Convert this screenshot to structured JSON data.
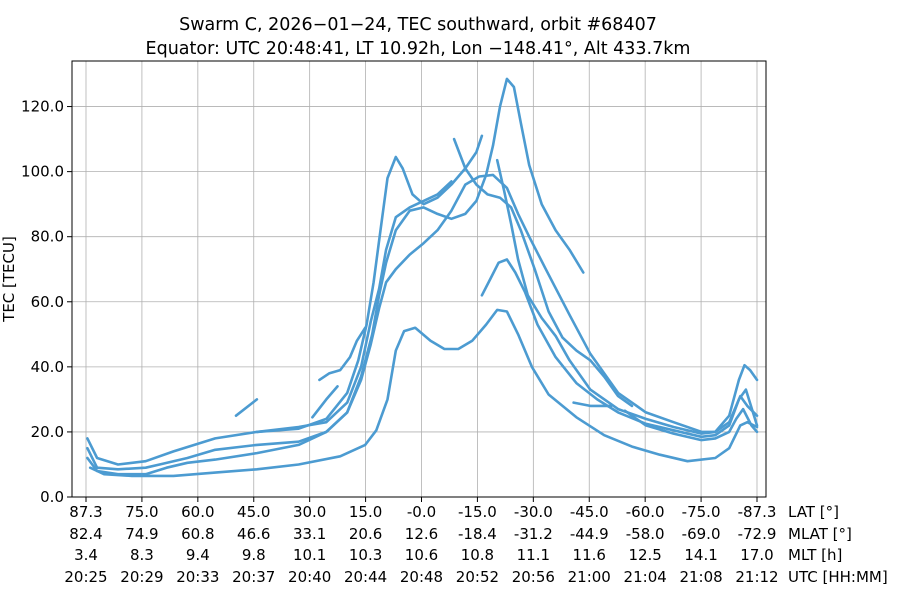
{
  "chart_data": {
    "type": "scatter",
    "title_line1": "Swarm C,  2026−01−24,  TEC southward,  orbit #68407",
    "title_line2": "Equator:  UTC 20:48:41,  LT 10.92h,  Lon  −148.41°,  Alt 433.7km",
    "ylabel": "TEC [TECU]",
    "ylim": [
      0,
      134
    ],
    "y_ticks": [
      "0.0",
      "20.0",
      "40.0",
      "60.0",
      "80.0",
      "100.0",
      "120.0"
    ],
    "grid": true,
    "color": "#4c9bd1",
    "x_unit": "minutes",
    "x_range": [
      20424.7,
      20473.0
    ],
    "x_axes": [
      {
        "name": "LAT [°]",
        "ticks": [
          "87.3",
          "75.0",
          "60.0",
          "45.0",
          "30.0",
          "15.0",
          "-0.0",
          "-15.0",
          "-30.0",
          "-45.0",
          "-60.0",
          "-75.0",
          "-87.3"
        ]
      },
      {
        "name": "MLAT [°]",
        "ticks": [
          "82.4",
          "74.9",
          "60.8",
          "46.6",
          "33.1",
          "20.6",
          "12.6",
          "-18.4",
          "-31.2",
          "-44.9",
          "-58.0",
          "-69.0",
          "-72.9"
        ]
      },
      {
        "name": "MLT [h]",
        "ticks": [
          "3.4",
          "8.3",
          "9.4",
          "9.8",
          "10.1",
          "10.3",
          "10.6",
          "10.8",
          "11.1",
          "11.6",
          "12.5",
          "14.1",
          "17.0"
        ]
      },
      {
        "name": "UTC [HH:MM]",
        "ticks": [
          "20:25",
          "20:29",
          "20:33",
          "20:37",
          "20:40",
          "20:44",
          "20:48",
          "20:52",
          "20:56",
          "21:00",
          "21:04",
          "21:08",
          "21:12"
        ]
      }
    ],
    "series": [
      {
        "points": [
          [
            20425,
            9
          ],
          [
            20426,
            7
          ],
          [
            20428,
            6.5
          ],
          [
            20431,
            6.5
          ],
          [
            20434,
            7.5
          ],
          [
            20437,
            8.5
          ],
          [
            20440,
            10
          ],
          [
            20443,
            12.5
          ],
          [
            20444.8,
            16
          ],
          [
            20445.6,
            20.5
          ],
          [
            20446.4,
            30
          ],
          [
            20447.0,
            45
          ],
          [
            20447.6,
            51
          ],
          [
            20448.4,
            52
          ],
          [
            20449.5,
            48
          ],
          [
            20450.5,
            45.5
          ],
          [
            20451.5,
            45.5
          ],
          [
            20452.5,
            48
          ],
          [
            20453.5,
            53
          ],
          [
            20454.3,
            57.5
          ],
          [
            20455.0,
            57
          ],
          [
            20455.8,
            50
          ],
          [
            20456.8,
            40
          ],
          [
            20458,
            31.5
          ],
          [
            20460,
            24.5
          ],
          [
            20462,
            19
          ],
          [
            20464,
            15.5
          ],
          [
            20466,
            13
          ],
          [
            20468,
            11
          ],
          [
            20470,
            12
          ],
          [
            20471,
            15
          ],
          [
            20471.8,
            22
          ],
          [
            20472.3,
            23
          ],
          [
            20473,
            21.5
          ]
        ]
      },
      {
        "points": [
          [
            20424.8,
            12
          ],
          [
            20425.5,
            8
          ],
          [
            20427,
            7
          ],
          [
            20429,
            7
          ],
          [
            20430.5,
            9
          ],
          [
            20432,
            10.5
          ],
          [
            20434,
            11.5
          ],
          [
            20437,
            13.5
          ],
          [
            20440,
            16
          ],
          [
            20442,
            20
          ],
          [
            20443.5,
            26
          ],
          [
            20444.5,
            36
          ],
          [
            20445.2,
            47
          ],
          [
            20445.8,
            58
          ],
          [
            20446.3,
            66
          ],
          [
            20447,
            70
          ],
          [
            20448,
            74.5
          ],
          [
            20449,
            78
          ],
          [
            20450,
            82
          ],
          [
            20451,
            88
          ],
          [
            20452,
            96
          ],
          [
            20453,
            98.5
          ],
          [
            20454,
            99
          ],
          [
            20455,
            95
          ],
          [
            20455.8,
            87
          ],
          [
            20456.6,
            80
          ],
          [
            20457.8,
            70
          ],
          [
            20459.5,
            56
          ],
          [
            20461,
            44
          ],
          [
            20463,
            32
          ],
          [
            20465,
            26
          ],
          [
            20467,
            23
          ],
          [
            20469,
            20
          ],
          [
            20470,
            20
          ],
          [
            20471,
            23
          ],
          [
            20471.8,
            31
          ],
          [
            20472.3,
            28
          ],
          [
            20473,
            25
          ]
        ]
      },
      {
        "points": [
          [
            20424.8,
            15
          ],
          [
            20425.5,
            9
          ],
          [
            20427,
            8.5
          ],
          [
            20429,
            9
          ],
          [
            20430,
            10
          ],
          [
            20432,
            12
          ],
          [
            20434,
            14.5
          ],
          [
            20437,
            16
          ],
          [
            20440,
            17
          ],
          [
            20442,
            20
          ],
          [
            20443.5,
            26
          ],
          [
            20444.5,
            37
          ],
          [
            20445.3,
            50
          ],
          [
            20445.8,
            62
          ],
          [
            20446.3,
            72
          ],
          [
            20447,
            82
          ],
          [
            20448,
            88
          ],
          [
            20449,
            89
          ],
          [
            20450,
            87
          ],
          [
            20451,
            85.5
          ],
          [
            20452,
            87
          ],
          [
            20452.8,
            91
          ],
          [
            20453.5,
            99
          ],
          [
            20454.0,
            108
          ],
          [
            20454.5,
            120
          ],
          [
            20455.0,
            128.5
          ],
          [
            20455.5,
            126
          ],
          [
            20456,
            115
          ],
          [
            20456.6,
            102
          ],
          [
            20457.5,
            90
          ],
          [
            20458.5,
            82
          ],
          [
            20459.5,
            76
          ],
          [
            20460.5,
            69
          ]
        ]
      },
      {
        "points": [
          [
            20424.8,
            18
          ],
          [
            20425.5,
            12
          ],
          [
            20427,
            10
          ],
          [
            20429,
            11
          ],
          [
            20431,
            14
          ],
          [
            20434,
            18
          ],
          [
            20437,
            20
          ],
          [
            20440,
            21.5
          ],
          [
            20442,
            23
          ],
          [
            20443.5,
            29
          ],
          [
            20444.5,
            40
          ],
          [
            20445.2,
            54
          ],
          [
            20445.8,
            64
          ],
          [
            20446.3,
            76
          ],
          [
            20447,
            86
          ],
          [
            20448,
            89
          ],
          [
            20449,
            91
          ],
          [
            20450,
            93
          ],
          [
            20451,
            97
          ]
        ]
      },
      {
        "points": [
          [
            20437,
            20
          ],
          [
            20440,
            21
          ],
          [
            20442,
            24
          ],
          [
            20443.5,
            32
          ],
          [
            20444.3,
            42
          ],
          [
            20444.9,
            53
          ],
          [
            20445.4,
            66
          ],
          [
            20445.9,
            82
          ],
          [
            20446.4,
            98
          ],
          [
            20447.0,
            104.5
          ],
          [
            20447.5,
            101
          ],
          [
            20448.2,
            93
          ],
          [
            20449,
            90
          ],
          [
            20450,
            92
          ],
          [
            20451,
            96
          ],
          [
            20452,
            101
          ],
          [
            20452.8,
            106
          ],
          [
            20453.2,
            111
          ]
        ]
      },
      {
        "points": [
          [
            20451.2,
            110
          ],
          [
            20452,
            101
          ],
          [
            20452.8,
            96
          ],
          [
            20453.6,
            93
          ],
          [
            20454.5,
            92
          ],
          [
            20455.3,
            89
          ],
          [
            20456,
            82
          ],
          [
            20457,
            70
          ],
          [
            20458,
            57
          ],
          [
            20459,
            49
          ],
          [
            20460,
            45
          ],
          [
            20461,
            42
          ],
          [
            20462,
            37
          ],
          [
            20463,
            31
          ],
          [
            20464,
            28
          ]
        ]
      },
      {
        "points": [
          [
            20454.3,
            103.5
          ],
          [
            20454.8,
            94
          ],
          [
            20455.3,
            84
          ],
          [
            20455.8,
            73
          ],
          [
            20456.5,
            62
          ],
          [
            20457.5,
            55
          ],
          [
            20458.5,
            49.5
          ],
          [
            20459.5,
            42
          ],
          [
            20461,
            33
          ],
          [
            20463,
            27
          ],
          [
            20465,
            24
          ],
          [
            20467,
            21.5
          ],
          [
            20469,
            19.5
          ],
          [
            20470,
            20
          ],
          [
            20471,
            25
          ],
          [
            20471.7,
            36
          ],
          [
            20472.1,
            40.5
          ],
          [
            20472.5,
            39
          ],
          [
            20473,
            36
          ]
        ]
      },
      {
        "points": [
          [
            20453.2,
            62
          ],
          [
            20453.8,
            67
          ],
          [
            20454.4,
            72
          ],
          [
            20455,
            73
          ],
          [
            20455.6,
            69
          ],
          [
            20456.3,
            63
          ],
          [
            20457.2,
            53
          ],
          [
            20458.5,
            43
          ],
          [
            20460,
            35
          ],
          [
            20461.5,
            30
          ],
          [
            20463,
            26
          ],
          [
            20465,
            22.5
          ],
          [
            20467,
            20.5
          ],
          [
            20469,
            18.5
          ],
          [
            20470,
            19
          ],
          [
            20471,
            22
          ],
          [
            20471.7,
            30
          ],
          [
            20472.2,
            33
          ],
          [
            20473,
            22
          ]
        ]
      },
      {
        "points": [
          [
            20463.5,
            26.5
          ],
          [
            20465,
            22
          ],
          [
            20467,
            19.5
          ],
          [
            20469,
            17.5
          ],
          [
            20470,
            18
          ],
          [
            20471,
            20
          ],
          [
            20471.5,
            24
          ],
          [
            20472,
            27
          ],
          [
            20472.6,
            22
          ],
          [
            20473,
            20
          ]
        ]
      },
      {
        "points": [
          [
            20435.5,
            25
          ],
          [
            20437,
            30
          ]
        ]
      },
      {
        "points": [
          [
            20441.5,
            36
          ],
          [
            20442.2,
            38
          ],
          [
            20443,
            39
          ],
          [
            20443.7,
            43
          ],
          [
            20444.2,
            48
          ],
          [
            20444.8,
            52
          ]
        ]
      },
      {
        "points": [
          [
            20441,
            24.5
          ],
          [
            20442,
            30
          ],
          [
            20442.8,
            34
          ]
        ]
      },
      {
        "points": [
          [
            20459.8,
            29
          ],
          [
            20461,
            28
          ],
          [
            20462.5,
            28
          ]
        ]
      }
    ]
  }
}
